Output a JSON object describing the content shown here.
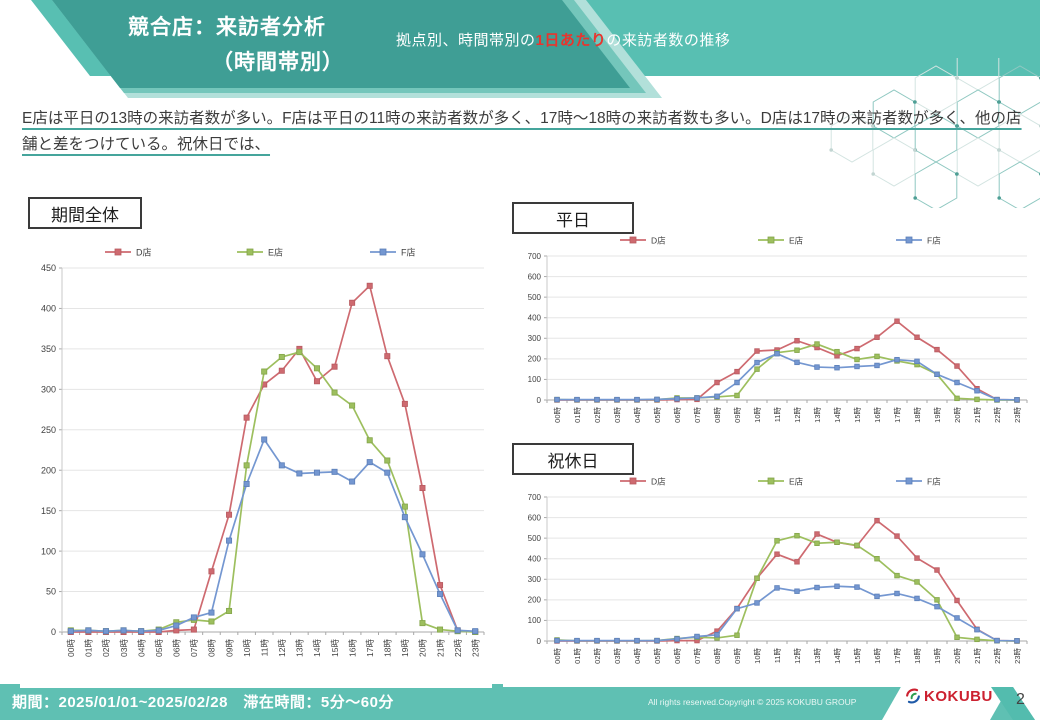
{
  "header": {
    "title_line1": "競合店：来訪者分析",
    "title_line2": "（時間帯別）",
    "subtitle_prefix": "拠点別、時間帯別の",
    "subtitle_highlight": "1日あたり",
    "subtitle_suffix": "の来訪者数の推移"
  },
  "summary": {
    "text": "E店は平日の13時の来訪者数が多い。F店は平日の11時の来訪者数が多く、17時～18時の来訪者数も多い。D店は17時の来訪者数が多く、他の店舗と差をつけている。祝休日では、"
  },
  "footer": {
    "period_label": "期間：2025/01/01~2025/02/28　滞在時間：5分～60分",
    "copyright": "All rights reserved.Copyright © 2025 KOKUBU GROUP",
    "logo_text": "KOKUBU",
    "page_number": "2"
  },
  "colors": {
    "banner_teal": "#58bfb2",
    "title_shape_teal": "#3f9e95",
    "footer_teal": "#5fc0b3",
    "highlight_red": "#e8352e",
    "underline_teal": "#45a59c",
    "logo_red": "#cc2130",
    "series_d": "#ce6a70",
    "series_e": "#9dbf5e",
    "series_f": "#7497d1"
  },
  "chart_data": [
    {
      "id": "overall",
      "title": "期間全体",
      "type": "line",
      "ylim": [
        0,
        450
      ],
      "ytick": 50,
      "legend_position": "top",
      "grid": true,
      "categories": [
        "00時",
        "01時",
        "02時",
        "03時",
        "04時",
        "05時",
        "06時",
        "07時",
        "08時",
        "09時",
        "10時",
        "11時",
        "12時",
        "13時",
        "14時",
        "15時",
        "16時",
        "17時",
        "18時",
        "19時",
        "20時",
        "21時",
        "22時",
        "23時"
      ],
      "series": [
        {
          "name": "D店",
          "color": "#ce6a70",
          "edge": "#b85a60",
          "values": [
            0,
            0,
            0,
            0,
            0,
            0,
            2,
            3,
            75,
            145,
            265,
            306,
            323,
            350,
            310,
            328,
            407,
            428,
            341,
            282,
            178,
            58,
            2,
            0
          ]
        },
        {
          "name": "E店",
          "color": "#9dbf5e",
          "edge": "#83a549",
          "values": [
            2,
            2,
            1,
            2,
            1,
            3,
            12,
            15,
            13,
            26,
            206,
            322,
            340,
            346,
            326,
            296,
            280,
            237,
            212,
            155,
            11,
            3,
            1,
            0
          ]
        },
        {
          "name": "F店",
          "color": "#7497d1",
          "edge": "#5c7fb8",
          "values": [
            1,
            2,
            1,
            2,
            1,
            2,
            8,
            18,
            24,
            113,
            183,
            238,
            206,
            196,
            197,
            198,
            186,
            210,
            197,
            142,
            96,
            47,
            2,
            1
          ]
        }
      ]
    },
    {
      "id": "weekday",
      "title": "平日",
      "type": "line",
      "ylim": [
        0,
        700
      ],
      "ytick": 100,
      "legend_position": "top",
      "grid": true,
      "categories": [
        "00時",
        "01時",
        "02時",
        "03時",
        "04時",
        "05時",
        "06時",
        "07時",
        "08時",
        "09時",
        "10時",
        "11時",
        "12時",
        "13時",
        "14時",
        "15時",
        "16時",
        "17時",
        "18時",
        "19時",
        "20時",
        "21時",
        "22時",
        "23時"
      ],
      "series": [
        {
          "name": "D店",
          "color": "#ce6a70",
          "edge": "#b85a60",
          "values": [
            0,
            0,
            0,
            0,
            0,
            0,
            2,
            3,
            85,
            138,
            238,
            243,
            288,
            255,
            215,
            250,
            305,
            383,
            305,
            245,
            165,
            55,
            2,
            0
          ]
        },
        {
          "name": "E店",
          "color": "#9dbf5e",
          "edge": "#83a549",
          "values": [
            2,
            1,
            1,
            1,
            1,
            2,
            10,
            10,
            15,
            22,
            150,
            230,
            242,
            272,
            235,
            197,
            212,
            190,
            172,
            125,
            8,
            3,
            0,
            0
          ]
        },
        {
          "name": "F店",
          "color": "#7497d1",
          "edge": "#5c7fb8",
          "values": [
            2,
            2,
            2,
            2,
            2,
            3,
            6,
            10,
            18,
            85,
            182,
            225,
            183,
            160,
            157,
            163,
            168,
            196,
            188,
            125,
            85,
            45,
            2,
            1
          ]
        }
      ]
    },
    {
      "id": "holiday",
      "title": "祝休日",
      "type": "line",
      "ylim": [
        0,
        700
      ],
      "ytick": 100,
      "legend_position": "top",
      "grid": true,
      "categories": [
        "00時",
        "01時",
        "02時",
        "03時",
        "04時",
        "05時",
        "06時",
        "07時",
        "08時",
        "09時",
        "10時",
        "11時",
        "12時",
        "13時",
        "14時",
        "15時",
        "16時",
        "17時",
        "18時",
        "19時",
        "20時",
        "21時",
        "22時",
        "23時"
      ],
      "series": [
        {
          "name": "D店",
          "color": "#ce6a70",
          "edge": "#b85a60",
          "values": [
            0,
            0,
            0,
            0,
            0,
            0,
            2,
            2,
            48,
            158,
            305,
            422,
            385,
            520,
            480,
            463,
            585,
            510,
            403,
            345,
            197,
            57,
            2,
            0
          ]
        },
        {
          "name": "E店",
          "color": "#9dbf5e",
          "edge": "#83a549",
          "values": [
            5,
            1,
            1,
            1,
            1,
            2,
            12,
            18,
            15,
            28,
            305,
            487,
            512,
            475,
            480,
            465,
            400,
            318,
            287,
            200,
            18,
            8,
            1,
            0
          ]
        },
        {
          "name": "F店",
          "color": "#7497d1",
          "edge": "#5c7fb8",
          "values": [
            2,
            2,
            2,
            2,
            2,
            2,
            10,
            22,
            30,
            157,
            185,
            258,
            242,
            260,
            266,
            262,
            217,
            231,
            207,
            167,
            112,
            55,
            2,
            1
          ]
        }
      ]
    }
  ]
}
